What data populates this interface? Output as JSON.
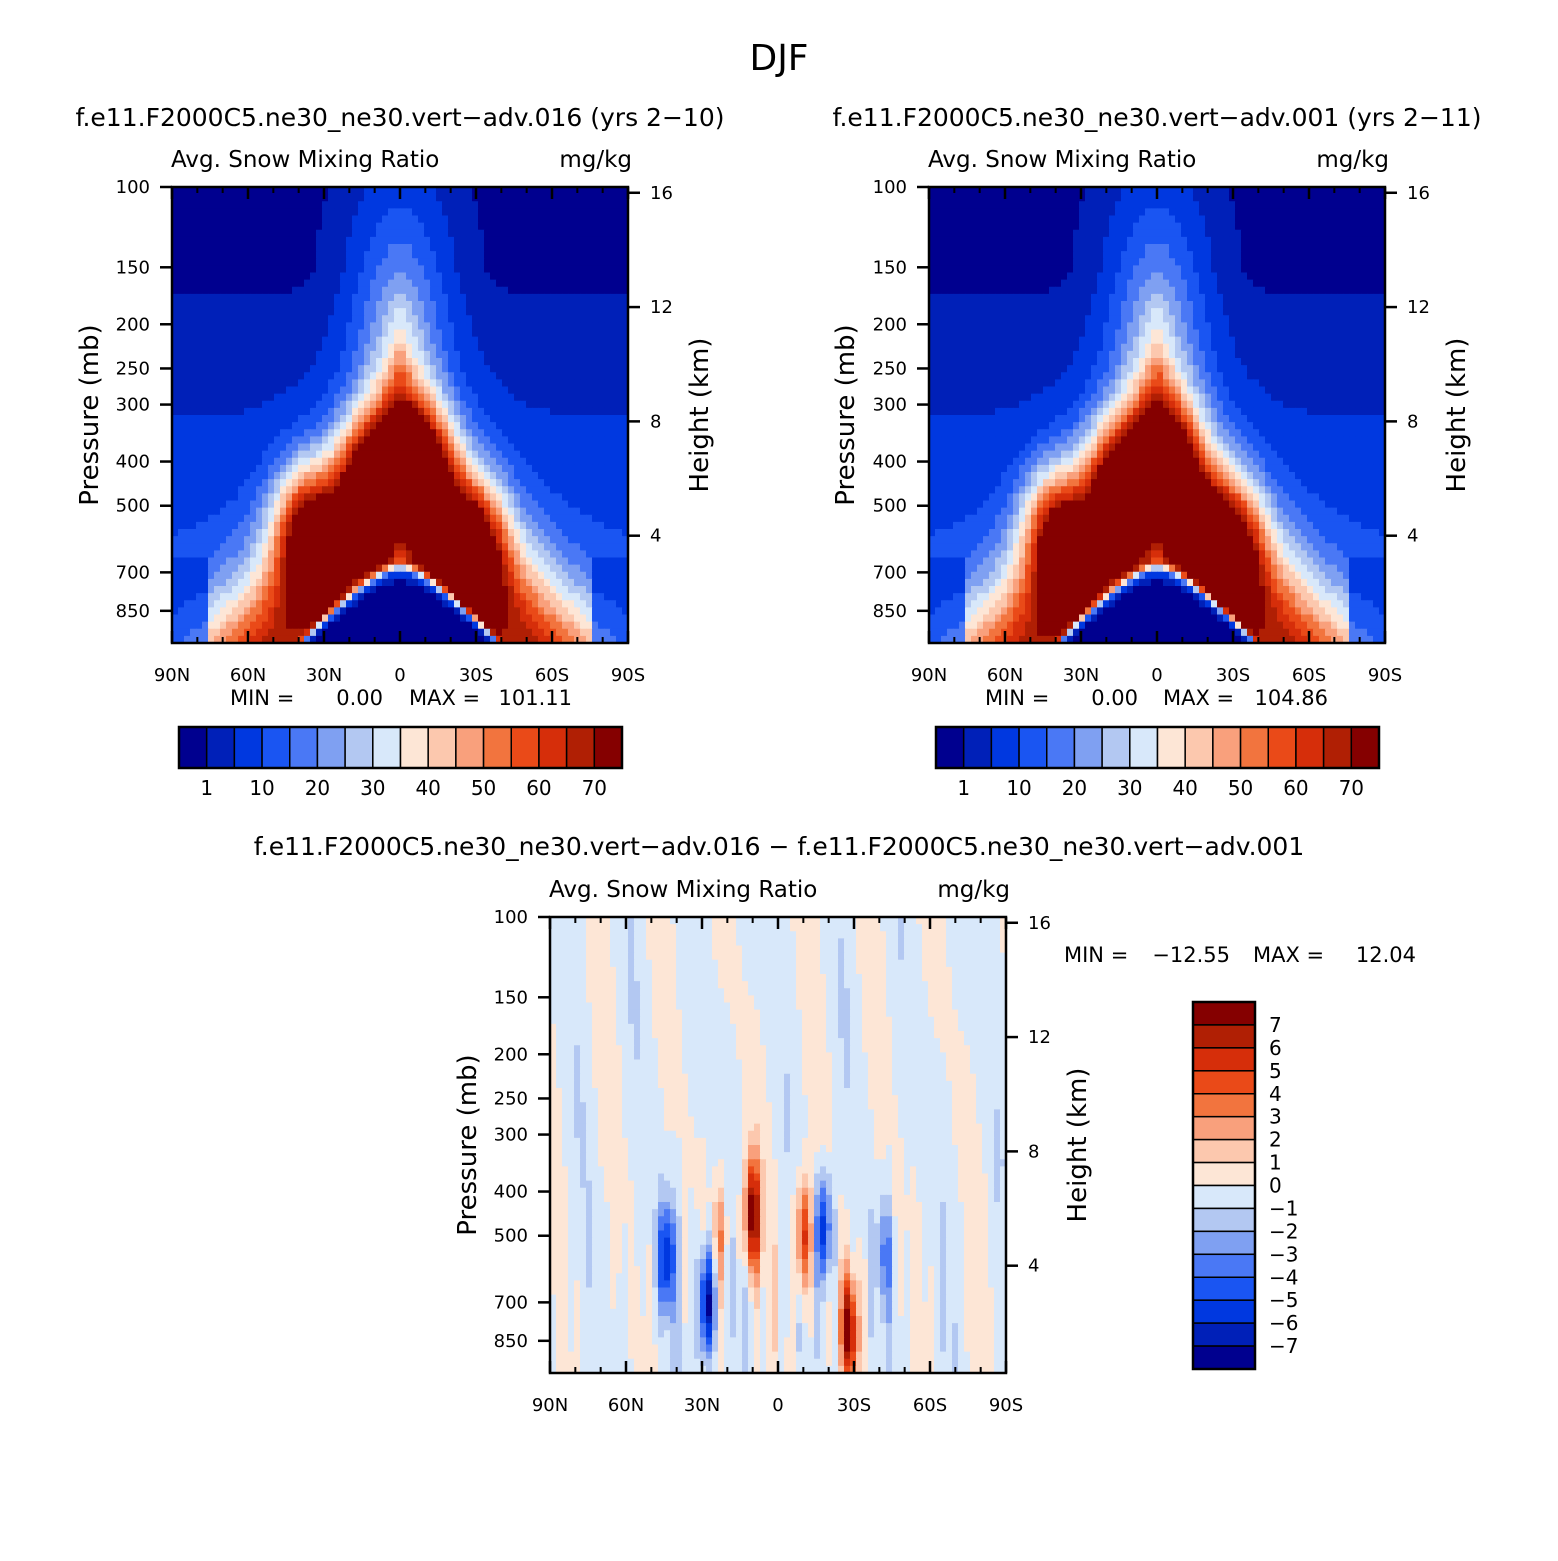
{
  "page": {
    "title": "DJF"
  },
  "colors": {
    "abs_levels": [
      "#00008f",
      "#0020b8",
      "#0038e0",
      "#1a55f2",
      "#4a78f5",
      "#7fa0f2",
      "#b3c8f2",
      "#d8e8fa",
      "#fde6d6",
      "#fcc8ae",
      "#f9a07c",
      "#f2743e",
      "#ea4a18",
      "#d62e0a",
      "#b01f04",
      "#850000"
    ],
    "diff_levels": [
      "#00008f",
      "#0020b8",
      "#0038e0",
      "#1a55f2",
      "#4a78f5",
      "#7fa0f2",
      "#b3c8f2",
      "#d8e8fa",
      "#fde6d6",
      "#fcc8ae",
      "#f9a07c",
      "#f2743e",
      "#ea4a18",
      "#d62e0a",
      "#b01f04",
      "#850000"
    ]
  },
  "chart_data": [
    {
      "type": "heatmap",
      "title": "f.e11.F2000C5.ne30_ne30.vert−adv.016 (yrs 2−10)",
      "subtitle_left": "Avg. Snow Mixing Ratio",
      "subtitle_right": "mg/kg",
      "ylabel": "Pressure (mb)",
      "y2label": "Height (km)",
      "x_ticks": [
        "90N",
        "60N",
        "30N",
        "0",
        "30S",
        "60S",
        "90S"
      ],
      "y_ticks": [
        "100",
        "150",
        "200",
        "250",
        "300",
        "400",
        "500",
        "700",
        "850"
      ],
      "y2_ticks": [
        "16",
        "12",
        "8",
        "4"
      ],
      "min_label": "MIN =",
      "min_value": "0.00",
      "max_label": "MAX =",
      "max_value": "101.11",
      "colorbar_labels": [
        "1",
        "10",
        "20",
        "30",
        "40",
        "50",
        "60",
        "70"
      ],
      "blobs": [
        {
          "lat": -27,
          "p": 620,
          "level": 15
        },
        {
          "lat": -8,
          "p": 420,
          "level": 15
        },
        {
          "lat": 12,
          "p": 450,
          "level": 15
        },
        {
          "lat": 37,
          "p": 560,
          "level": 15
        }
      ]
    },
    {
      "type": "heatmap",
      "title": "f.e11.F2000C5.ne30_ne30.vert−adv.001 (yrs 2−11)",
      "subtitle_left": "Avg. Snow Mixing Ratio",
      "subtitle_right": "mg/kg",
      "ylabel": "Pressure (mb)",
      "y2label": "Height (km)",
      "x_ticks": [
        "90N",
        "60N",
        "30N",
        "0",
        "30S",
        "60S",
        "90S"
      ],
      "y_ticks": [
        "100",
        "150",
        "200",
        "250",
        "300",
        "400",
        "500",
        "700",
        "850"
      ],
      "y2_ticks": [
        "16",
        "12",
        "8",
        "4"
      ],
      "min_label": "MIN =",
      "min_value": "0.00",
      "max_label": "MAX =",
      "max_value": "104.86",
      "colorbar_labels": [
        "1",
        "10",
        "20",
        "30",
        "40",
        "50",
        "60",
        "70"
      ],
      "blobs": [
        {
          "lat": -27,
          "p": 620,
          "level": 15
        },
        {
          "lat": -5,
          "p": 430,
          "level": 14
        },
        {
          "lat": 15,
          "p": 450,
          "level": 14
        },
        {
          "lat": 40,
          "p": 570,
          "level": 15
        }
      ]
    },
    {
      "type": "heatmap",
      "title": "f.e11.F2000C5.ne30_ne30.vert−adv.016 − f.e11.F2000C5.ne30_ne30.vert−adv.001",
      "subtitle_left": "Avg. Snow Mixing Ratio",
      "subtitle_right": "mg/kg",
      "ylabel": "Pressure (mb)",
      "y2label": "Height (km)",
      "x_ticks": [
        "90N",
        "60N",
        "30N",
        "0",
        "30S",
        "60S",
        "90S"
      ],
      "y_ticks": [
        "100",
        "150",
        "200",
        "250",
        "300",
        "400",
        "500",
        "700",
        "850"
      ],
      "y2_ticks": [
        "16",
        "12",
        "8",
        "4"
      ],
      "min_label": "MIN =",
      "min_value": "−12.55",
      "max_label": "MAX =",
      "max_value": "12.04",
      "colorbar_labels": [
        "7",
        "6",
        "5",
        "4",
        "3",
        "2",
        "1",
        "0",
        "−1",
        "−2",
        "−3",
        "−4",
        "−5",
        "−6",
        "−7"
      ],
      "features": [
        {
          "lat": 10,
          "p": 450,
          "value": 8
        },
        {
          "lat": -10,
          "p": 500,
          "value": 6
        },
        {
          "lat": -28,
          "p": 800,
          "value": 8
        },
        {
          "lat": -18,
          "p": 480,
          "value": -6
        },
        {
          "lat": 44,
          "p": 560,
          "value": -6
        },
        {
          "lat": 28,
          "p": 700,
          "value": -8
        },
        {
          "lat": 23,
          "p": 500,
          "value": 3
        },
        {
          "lat": -42,
          "p": 550,
          "value": -3
        }
      ]
    }
  ]
}
